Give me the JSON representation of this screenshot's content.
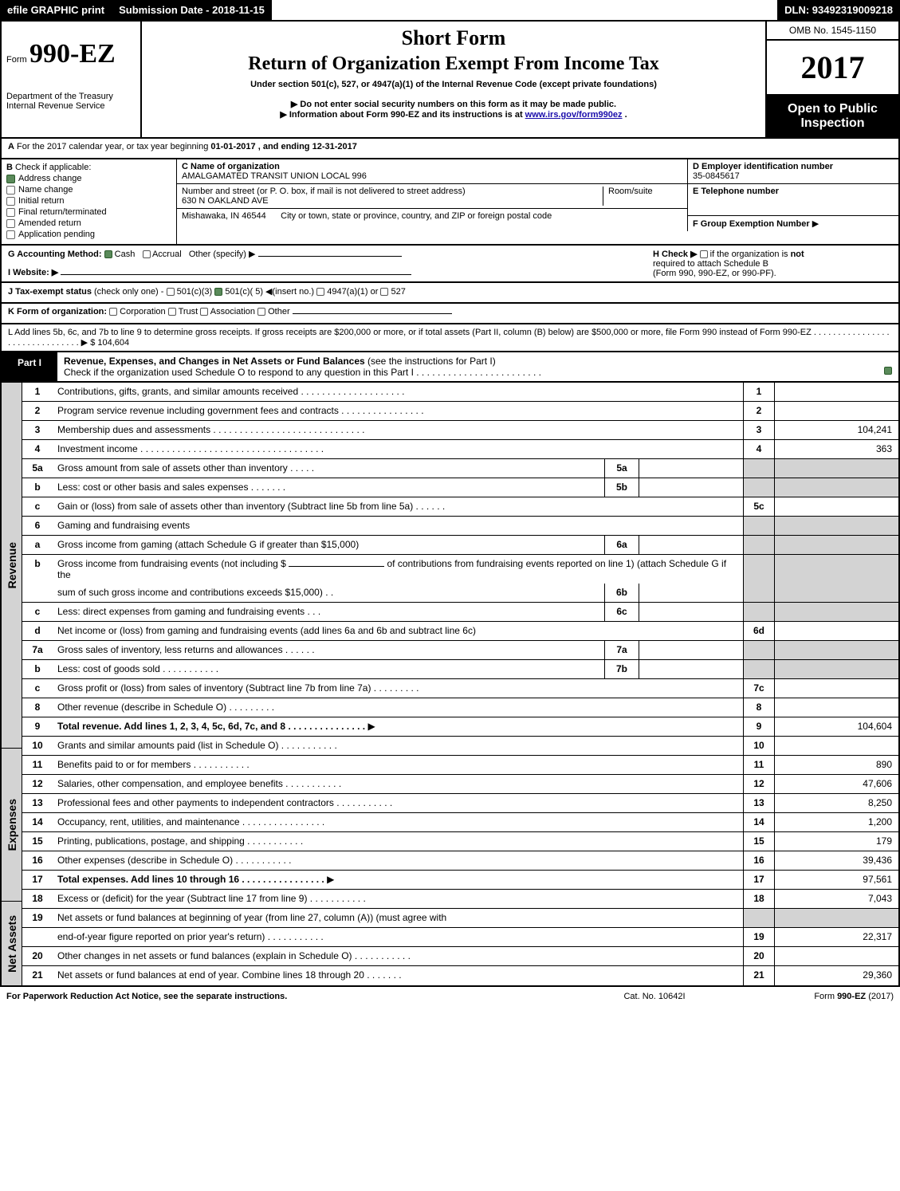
{
  "colors": {
    "black_bg": "#000000",
    "white": "#ffffff",
    "grey": "#d3d3d3",
    "link": "#1a0dab",
    "checkbox_on": "#5a8a5a"
  },
  "topbar": {
    "left": "efile GRAPHIC print",
    "mid": "Submission Date - 2018-11-15",
    "right": "DLN: 93492319009218"
  },
  "header": {
    "form_prefix": "Form",
    "form_number": "990-EZ",
    "dept1": "Department of the Treasury",
    "dept2": "Internal Revenue Service",
    "title1": "Short Form",
    "title2": "Return of Organization Exempt From Income Tax",
    "subtitle": "Under section 501(c), 527, or 4947(a)(1) of the Internal Revenue Code (except private foundations)",
    "bullet1_pre": "▶ Do not enter social security numbers on this form as it may be made public.",
    "bullet2_pre": "▶ Information about Form 990-EZ and its instructions is at ",
    "bullet2_link": "www.irs.gov/form990ez",
    "bullet2_post": ".",
    "omb": "OMB No. 1545-1150",
    "year": "2017",
    "open": "Open to Public Inspection"
  },
  "sectionA": {
    "label": "A",
    "text_pre": "For the 2017 calendar year, or tax year beginning ",
    "begin": "01-01-2017",
    "mid": ", and ending ",
    "end": "12-31-2017"
  },
  "sectionB": {
    "label": "B",
    "title": "Check if applicable:",
    "options": [
      {
        "label": "Address change",
        "checked": true
      },
      {
        "label": "Name change",
        "checked": false
      },
      {
        "label": "Initial return",
        "checked": false
      },
      {
        "label": "Final return/terminated",
        "checked": false
      },
      {
        "label": "Amended return",
        "checked": false
      },
      {
        "label": "Application pending",
        "checked": false
      }
    ]
  },
  "sectionC": {
    "name_label": "C Name of organization",
    "name_value": "AMALGAMATED TRANSIT UNION LOCAL 996",
    "addr_label": "Number and street (or P. O. box, if mail is not delivered to street address)",
    "addr_value": "630 N OAKLAND AVE",
    "room_label": "Room/suite",
    "city_value": "Mishawaka, IN  46544",
    "city_label": "City or town, state or province, country, and ZIP or foreign postal code"
  },
  "sectionD": {
    "label": "D Employer identification number",
    "value": "35-0845617"
  },
  "sectionE": {
    "label": "E Telephone number",
    "value": ""
  },
  "sectionF": {
    "label": "F Group Exemption Number",
    "arrow": "▶"
  },
  "sectionG": {
    "label": "G Accounting Method:",
    "cash": "Cash",
    "accrual": "Accrual",
    "other": "Other (specify) ▶"
  },
  "sectionH": {
    "text1": "H  Check ▶",
    "text2": "if the organization is",
    "not": "not",
    "text3": "required to attach Schedule B",
    "text4": "(Form 990, 990-EZ, or 990-PF)."
  },
  "sectionI": {
    "label": "I Website: ▶"
  },
  "sectionJ": {
    "label": "J Tax-exempt status",
    "note": "(check only one) -",
    "opts": [
      "501(c)(3)",
      "501(c)( 5) ◀(insert no.)",
      "4947(a)(1) or",
      "527"
    ],
    "checked_index": 1
  },
  "sectionK": {
    "label": "K Form of organization:",
    "opts": [
      "Corporation",
      "Trust",
      "Association",
      "Other"
    ]
  },
  "sectionL": {
    "text": "L Add lines 5b, 6c, and 7b to line 9 to determine gross receipts. If gross receipts are $200,000 or more, or if total assets (Part II, column (B) below) are $500,000 or more, file Form 990 instead of Form 990-EZ  .  .  .  .  .  .  .  .  .  .  .  .  .  .  .  .  .  .  .  .  .  .  .  .  .  .  .  .  .  .  .  ▶ $ 104,604"
  },
  "part1": {
    "tab": "Part I",
    "title": "Revenue, Expenses, and Changes in Net Assets or Fund Balances",
    "title_note": "(see the instructions for Part I)",
    "check_line": "Check if the organization used Schedule O to respond to any question in this Part I .  .  .  .  .  .  .  .  .  .  .  .  .  .  .  .  .  .  .  .  .  .  .  ."
  },
  "sidebars": {
    "revenue": "Revenue",
    "expenses": "Expenses",
    "netassets": "Net Assets"
  },
  "rows": {
    "1": {
      "desc": "Contributions, gifts, grants, and similar amounts received  .  .  .  .  .  .  .  .  .  .  .  .  .  .  .  .  .  .  .  .",
      "ln": "1",
      "val": ""
    },
    "2": {
      "desc": "Program service revenue including government fees and contracts  .  .  .  .  .  .  .  .  .  .  .  .  .  .  .  .",
      "ln": "2",
      "val": ""
    },
    "3": {
      "desc": "Membership dues and assessments  .  .  .  .  .  .  .  .  .  .  .  .  .  .  .  .  .  .  .  .  .  .  .  .  .  .  .  .  .",
      "ln": "3",
      "val": "104,241"
    },
    "4": {
      "desc": "Investment income  .  .  .  .  .  .  .  .  .  .  .  .  .  .  .  .  .  .  .  .  .  .  .  .  .  .  .  .  .  .  .  .  .  .  .",
      "ln": "4",
      "val": "363"
    },
    "5a": {
      "desc": "Gross amount from sale of assets other than inventory  .  .  .  .  .",
      "mini_ln": "5a",
      "mini_val": ""
    },
    "5b": {
      "desc": "Less: cost or other basis and sales expenses  .  .  .  .  .  .  .",
      "mini_ln": "5b",
      "mini_val": ""
    },
    "5c": {
      "desc": "Gain or (loss) from sale of assets other than inventory (Subtract line 5b from line 5a)                             .  .  .  .  .  .",
      "ln": "5c",
      "val": ""
    },
    "6": {
      "desc": "Gaming and fundraising events"
    },
    "6a": {
      "desc": "Gross income from gaming (attach Schedule G if greater than $15,000)",
      "mini_ln": "6a",
      "mini_val": ""
    },
    "6b_pre": "Gross income from fundraising events (not including $ ",
    "6b_mid": " of contributions from fundraising events reported on line 1) (attach Schedule G if the",
    "6b2": {
      "desc": "sum of such gross income and contributions exceeds $15,000)              .  .",
      "mini_ln": "6b",
      "mini_val": ""
    },
    "6c": {
      "desc": "Less: direct expenses from gaming and fundraising events                     .  .  .",
      "mini_ln": "6c",
      "mini_val": ""
    },
    "6d": {
      "desc": "Net income or (loss) from gaming and fundraising events (add lines 6a and 6b and subtract line 6c)",
      "ln": "6d",
      "val": ""
    },
    "7a": {
      "desc": "Gross sales of inventory, less returns and allowances                         .  .  .  .  .  .",
      "mini_ln": "7a",
      "mini_val": ""
    },
    "7b": {
      "desc": "Less: cost of goods sold                                                    .  .  .  .  .  .  .  .  .  .  .",
      "mini_ln": "7b",
      "mini_val": ""
    },
    "7c": {
      "desc": "Gross profit or (loss) from sales of inventory (Subtract line 7b from line 7a)                         .  .  .  .  .  .  .  .  .",
      "ln": "7c",
      "val": ""
    },
    "8": {
      "desc": "Other revenue (describe in Schedule O)                                                                     .  .  .  .  .  .  .  .  .",
      "ln": "8",
      "val": ""
    },
    "9": {
      "desc": "Total revenue. Add lines 1, 2, 3, 4, 5c, 6d, 7c, and 8                          .  .  .  .  .  .  .  .  .  .  .  .  .  .  .",
      "ln": "9",
      "val": "104,604",
      "arrow": true,
      "bold": true
    },
    "10": {
      "desc": "Grants and similar amounts paid (list in Schedule O)                                                 .  .  .  .  .  .  .  .  .  .  .",
      "ln": "10",
      "val": ""
    },
    "11": {
      "desc": "Benefits paid to or for members                                                                       .  .  .  .  .  .  .  .  .  .  .",
      "ln": "11",
      "val": "890"
    },
    "12": {
      "desc": "Salaries, other compensation, and employee benefits                                               .  .  .  .  .  .  .  .  .  .  .",
      "ln": "12",
      "val": "47,606"
    },
    "13": {
      "desc": "Professional fees and other payments to independent contractors                           .  .  .  .  .  .  .  .  .  .  .",
      "ln": "13",
      "val": "8,250"
    },
    "14": {
      "desc": "Occupancy, rent, utilities, and maintenance                                              .  .  .  .  .  .  .  .  .  .  .  .  .  .  .  .",
      "ln": "14",
      "val": "1,200"
    },
    "15": {
      "desc": "Printing, publications, postage, and shipping                                                        .  .  .  .  .  .  .  .  .  .  .",
      "ln": "15",
      "val": "179"
    },
    "16": {
      "desc": "Other expenses (describe in Schedule O)                                                               .  .  .  .  .  .  .  .  .  .  .",
      "ln": "16",
      "val": "39,436"
    },
    "17": {
      "desc": "Total expenses. Add lines 10 through 16                                         .  .  .  .  .  .  .  .  .  .  .  .  .  .  .  .",
      "ln": "17",
      "val": "97,561",
      "arrow": true,
      "bold": true
    },
    "18": {
      "desc": "Excess or (deficit) for the year (Subtract line 17 from line 9)                                     .  .  .  .  .  .  .  .  .  .  .",
      "ln": "18",
      "val": "7,043"
    },
    "19a": {
      "desc": "Net assets or fund balances at beginning of year (from line 27, column (A)) (must agree with"
    },
    "19b": {
      "desc": "end-of-year figure reported on prior year's return)                                                  .  .  .  .  .  .  .  .  .  .  .",
      "ln": "19",
      "val": "22,317"
    },
    "20": {
      "desc": "Other changes in net assets or fund balances (explain in Schedule O)                            .  .  .  .  .  .  .  .  .  .  .",
      "ln": "20",
      "val": ""
    },
    "21": {
      "desc": "Net assets or fund balances at end of year. Combine lines 18 through 20                                 .  .  .  .  .  .  .",
      "ln": "21",
      "val": "29,360"
    }
  },
  "footer": {
    "left": "For Paperwork Reduction Act Notice, see the separate instructions.",
    "center": "Cat. No. 10642I",
    "right_pre": "Form ",
    "right_bold": "990-EZ",
    "right_post": " (2017)"
  }
}
